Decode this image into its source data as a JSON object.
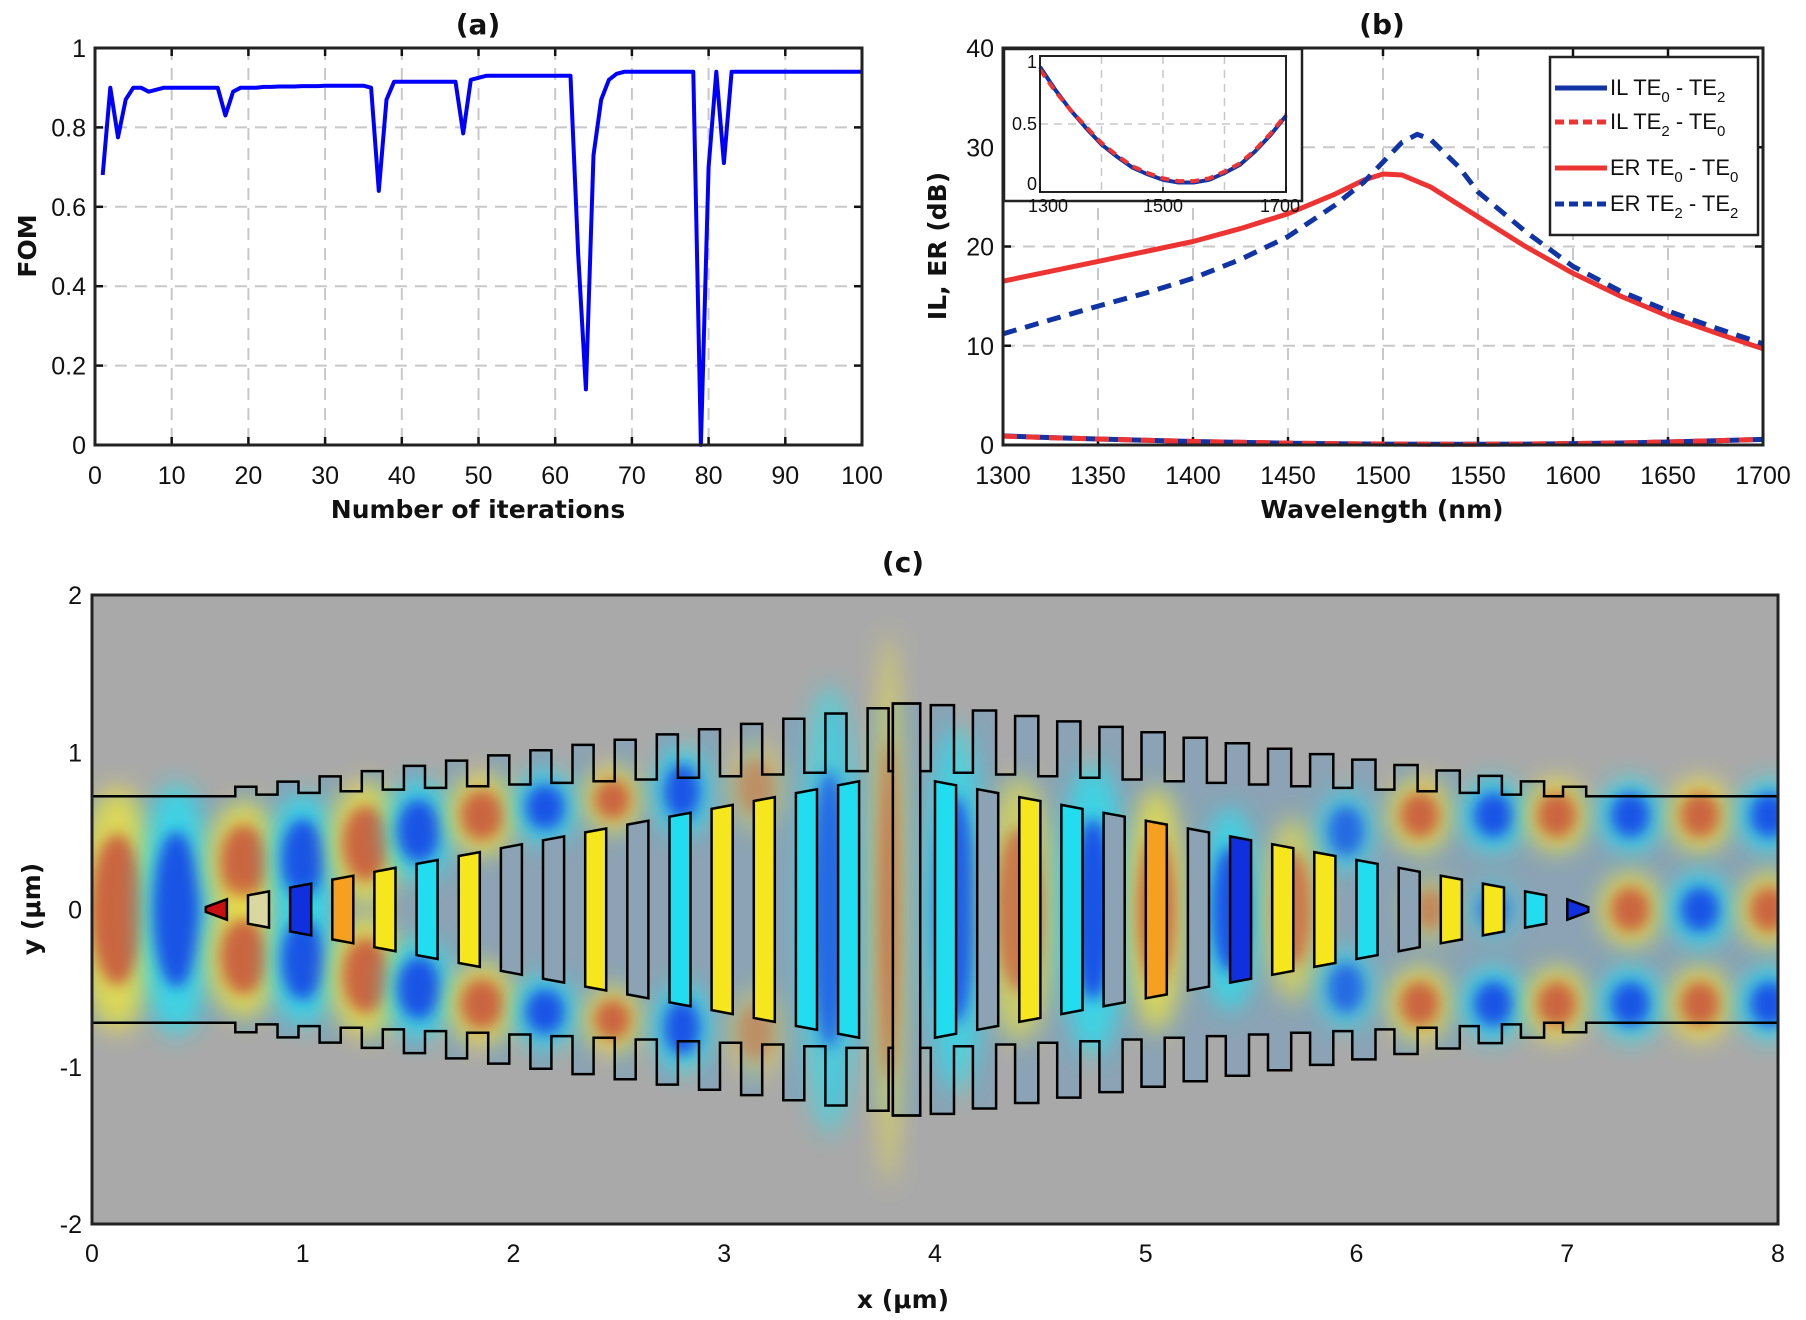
{
  "chart_data": [
    {
      "panel": "(a)",
      "type": "line",
      "xlabel": "Number of iterations",
      "ylabel": "FOM",
      "xlim": [
        0,
        100
      ],
      "ylim": [
        0,
        1
      ],
      "xticks": [
        "0",
        "10",
        "20",
        "30",
        "40",
        "50",
        "60",
        "70",
        "80",
        "90",
        "100"
      ],
      "yticks": [
        "0",
        "0.2",
        "0.4",
        "0.6",
        "0.8",
        "1"
      ],
      "grid": true,
      "color": "#0000ff",
      "x": [
        1,
        2,
        3,
        4,
        5,
        6,
        7,
        8,
        9,
        10,
        11,
        12,
        13,
        14,
        15,
        16,
        17,
        18,
        19,
        20,
        21,
        22,
        23,
        24,
        25,
        26,
        27,
        28,
        29,
        30,
        31,
        32,
        33,
        34,
        35,
        36,
        37,
        38,
        39,
        40,
        41,
        42,
        43,
        44,
        45,
        46,
        47,
        48,
        49,
        50,
        51,
        52,
        53,
        54,
        55,
        56,
        57,
        58,
        59,
        60,
        61,
        62,
        63,
        64,
        65,
        66,
        67,
        68,
        69,
        70,
        71,
        72,
        73,
        74,
        75,
        76,
        77,
        78,
        79,
        80,
        81,
        82,
        83,
        84,
        85,
        86,
        87,
        88,
        89,
        90,
        91,
        92,
        93,
        94,
        95,
        96,
        97,
        98,
        99,
        100
      ],
      "values": [
        0.68,
        0.9,
        0.775,
        0.87,
        0.9,
        0.9,
        0.89,
        0.895,
        0.9,
        0.9,
        0.9,
        0.9,
        0.9,
        0.9,
        0.9,
        0.9,
        0.83,
        0.89,
        0.9,
        0.9,
        0.9,
        0.902,
        0.902,
        0.903,
        0.903,
        0.903,
        0.904,
        0.904,
        0.904,
        0.905,
        0.905,
        0.905,
        0.905,
        0.905,
        0.905,
        0.9,
        0.64,
        0.87,
        0.915,
        0.915,
        0.915,
        0.915,
        0.915,
        0.915,
        0.915,
        0.915,
        0.915,
        0.785,
        0.92,
        0.925,
        0.93,
        0.93,
        0.93,
        0.93,
        0.93,
        0.93,
        0.93,
        0.93,
        0.93,
        0.93,
        0.93,
        0.93,
        0.48,
        0.14,
        0.73,
        0.87,
        0.92,
        0.935,
        0.94,
        0.94,
        0.94,
        0.94,
        0.94,
        0.94,
        0.94,
        0.94,
        0.94,
        0.94,
        0.0,
        0.7,
        0.94,
        0.71,
        0.94,
        0.94,
        0.94,
        0.94,
        0.94,
        0.94,
        0.94,
        0.94,
        0.94,
        0.94,
        0.94,
        0.94,
        0.94,
        0.94,
        0.94,
        0.94,
        0.94,
        0.94
      ]
    },
    {
      "panel": "(b)",
      "type": "line",
      "xlabel": "Wavelength (nm)",
      "ylabel": "IL, ER (dB)",
      "xlim": [
        1300,
        1700
      ],
      "ylim": [
        0,
        40
      ],
      "xticks": [
        "1300",
        "1350",
        "1400",
        "1450",
        "1500",
        "1550",
        "1600",
        "1650",
        "1700"
      ],
      "yticks": [
        "0",
        "10",
        "20",
        "30",
        "40"
      ],
      "grid": true,
      "legend_placement": "top-right",
      "series": [
        {
          "legend": {
            "prefix": "IL TE",
            "sub1": "0",
            "mid": " - TE",
            "sub2": "2"
          },
          "color": "#1034a6",
          "style": "solid",
          "x": [
            1300,
            1325,
            1350,
            1375,
            1400,
            1425,
            1450,
            1475,
            1500,
            1525,
            1550,
            1575,
            1600,
            1625,
            1650,
            1675,
            1700
          ],
          "values": [
            0.92,
            0.75,
            0.6,
            0.47,
            0.35,
            0.26,
            0.18,
            0.13,
            0.09,
            0.07,
            0.07,
            0.09,
            0.14,
            0.2,
            0.3,
            0.42,
            0.56
          ]
        },
        {
          "legend": {
            "prefix": "IL TE",
            "sub1": "2",
            "mid": " - TE",
            "sub2": "0"
          },
          "color": "#ee3333",
          "style": "dashed",
          "x": [
            1300,
            1325,
            1350,
            1375,
            1400,
            1425,
            1450,
            1475,
            1500,
            1525,
            1550,
            1575,
            1600,
            1625,
            1650,
            1675,
            1700
          ],
          "values": [
            0.9,
            0.74,
            0.6,
            0.48,
            0.36,
            0.27,
            0.19,
            0.14,
            0.1,
            0.08,
            0.08,
            0.1,
            0.15,
            0.21,
            0.31,
            0.43,
            0.57
          ]
        },
        {
          "legend": {
            "prefix": "ER TE",
            "sub1": "0",
            "mid": " - TE",
            "sub2": "0"
          },
          "color": "#ee3333",
          "style": "solid",
          "x": [
            1300,
            1325,
            1350,
            1375,
            1400,
            1425,
            1450,
            1475,
            1490,
            1500,
            1510,
            1525,
            1550,
            1575,
            1600,
            1625,
            1650,
            1675,
            1700
          ],
          "values": [
            16.5,
            17.5,
            18.5,
            19.5,
            20.5,
            21.8,
            23.3,
            25.3,
            26.7,
            27.3,
            27.2,
            26,
            23,
            20,
            17.3,
            15,
            13,
            11.3,
            9.7
          ]
        },
        {
          "legend": {
            "prefix": "ER TE",
            "sub1": "2",
            "mid": " - TE",
            "sub2": "2"
          },
          "color": "#1034a6",
          "style": "dashed",
          "x": [
            1300,
            1325,
            1350,
            1375,
            1400,
            1425,
            1450,
            1475,
            1490,
            1500,
            1510,
            1518,
            1525,
            1540,
            1550,
            1575,
            1600,
            1625,
            1650,
            1675,
            1700
          ],
          "values": [
            11.2,
            12.6,
            14,
            15.3,
            16.8,
            18.7,
            21,
            24.2,
            26.5,
            28.5,
            30.5,
            31.3,
            30.8,
            28,
            25.5,
            21.5,
            18,
            15.5,
            13.5,
            11.8,
            10.2
          ]
        }
      ],
      "inset": {
        "xlim": [
          1300,
          1700
        ],
        "ylim": [
          0,
          1
        ],
        "xticks": [
          "1300",
          "1500",
          "1700"
        ],
        "yticks": [
          "0",
          "0.5",
          "1"
        ],
        "grid": true,
        "series_shown": [
          "IL TE0 - TE2",
          "IL TE2 - TE0"
        ]
      }
    },
    {
      "panel": "(c)",
      "type": "heatmap",
      "xlabel": "x (μm)",
      "ylabel": "y (μm)",
      "xlim": [
        0,
        8
      ],
      "ylim": [
        -2,
        2
      ],
      "xticks": [
        "0",
        "1",
        "2",
        "3",
        "4",
        "5",
        "6",
        "7",
        "8"
      ],
      "yticks": [
        "-2",
        "-1",
        "0",
        "1",
        "2"
      ],
      "colormap": "jet",
      "background_color": "#a9a9a9",
      "core_color": "#8ba3b4",
      "outline_color": "#000000"
    }
  ]
}
